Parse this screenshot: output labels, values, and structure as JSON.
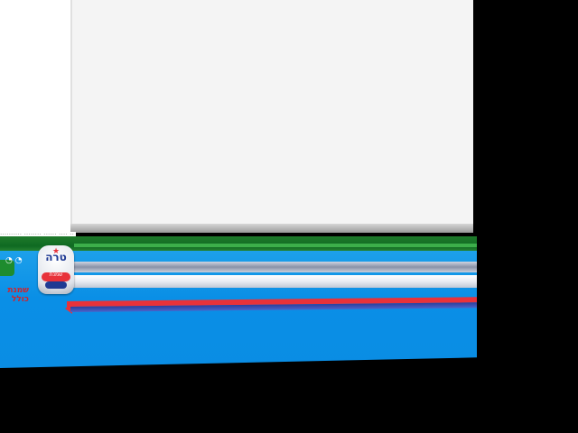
{
  "screen": {
    "background_color": "#000000"
  },
  "promo": {
    "tag_dots": "◔ ◔",
    "headline_line1": "שמנת",
    "headline_line2": "כולל",
    "product_logo_text": "טרה",
    "product_mini_text": "שמנת",
    "product_star": "★"
  },
  "fineprint": {
    "text": "---------- -------- ------ ---- ----------"
  },
  "colors": {
    "green": "#1f7a2b",
    "blue": "#0a8fe6",
    "red": "#e8323a",
    "navy": "#2b3f9e",
    "paper": "#f4f4f4"
  }
}
